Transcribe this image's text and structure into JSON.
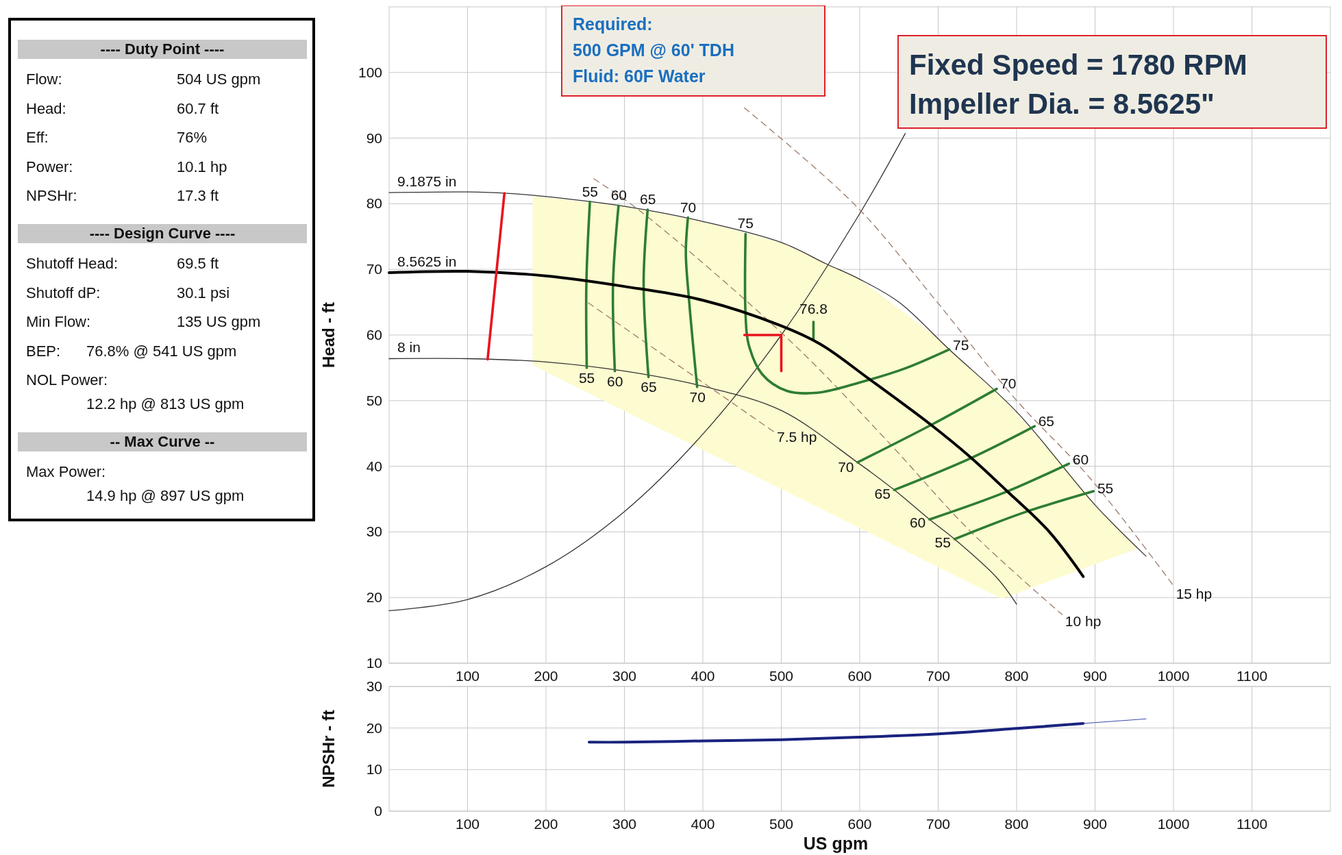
{
  "chart_data": [
    {
      "type": "other",
      "title": "---- Duty Point ----",
      "annotations": [
        "Flow:",
        "504 US gpm",
        "Head:",
        "60.7 ft",
        "Eff:",
        "76%",
        "Power:",
        "10.1 hp",
        "NPSHr:",
        "17.3 ft"
      ]
    },
    {
      "type": "other",
      "title": "---- Design Curve ----",
      "annotations": [
        "Shutoff Head:",
        "69.5 ft",
        "Shutoff dP:",
        "30.1 psi",
        "Min Flow:",
        "135 US gpm",
        "BEP:",
        "76.8% @ 541 US gpm",
        "NOL Power:",
        "12.2 hp @ 813 US gpm"
      ]
    },
    {
      "type": "other",
      "title": "-- Max Curve --",
      "annotations": [
        "Max Power:",
        "14.9 hp @ 897 US gpm"
      ]
    },
    {
      "type": "line",
      "ylabel": "Head - ft",
      "xlim": [
        0,
        1200
      ],
      "ylim": [
        10,
        110
      ],
      "xticks": [
        100,
        200,
        300,
        400,
        500,
        600,
        700,
        800,
        900,
        1000,
        1100
      ],
      "yticks": [
        10,
        20,
        30,
        40,
        50,
        60,
        70,
        80,
        90,
        100
      ],
      "grid": true,
      "annotations": [
        "Required:\n500 GPM @ 60' TDH\nFluid: 60F Water",
        "Fixed Speed = 1780 RPM\nImpeller Dia. = 8.5625\"",
        {
          "text": "76.8",
          "x": 541,
          "y": 62
        }
      ],
      "series": [
        {
          "type": "area",
          "color": "#fdfbd0",
          "x": [
            183,
            300,
            400,
            500,
            600,
            700,
            781,
            850,
            900,
            955,
            781,
            183
          ],
          "values": [
            81.2,
            79.6,
            77.3,
            74.1,
            68.5,
            59.5,
            50.5,
            41.5,
            34.1,
            27.5,
            19.8,
            55.4
          ]
        },
        {
          "name": "9.1875 in",
          "color": "#333333",
          "x": [
            0,
            100,
            150,
            200,
            300,
            400,
            500,
            558,
            600,
            650,
            714,
            800,
            900,
            965
          ],
          "values": [
            81.7,
            81.8,
            81.6,
            81.1,
            79.6,
            77.3,
            74.1,
            70.8,
            68.5,
            65,
            57.8,
            48.3,
            34.1,
            26.3
          ]
        },
        {
          "name": "8 in",
          "color": "#333333",
          "x": [
            0,
            100,
            200,
            300,
            400,
            500,
            597,
            644,
            689,
            721,
            775,
            800
          ],
          "values": [
            56.4,
            56.4,
            55.9,
            54.5,
            52.2,
            48.5,
            40.6,
            36.4,
            31.9,
            28.9,
            23,
            19
          ]
        },
        {
          "color": "#333333",
          "x": [
            0,
            100,
            200,
            300,
            400,
            500,
            600,
            658
          ],
          "values": [
            18,
            19.7,
            24.7,
            33.1,
            44.9,
            60,
            78.5,
            90.7
          ]
        },
        {
          "name": "7.5 hp",
          "color": "#9c7b6a",
          "line_style": "dashed",
          "x": [
            254,
            490
          ],
          "values": [
            64.9,
            45.3
          ]
        },
        {
          "name": "10 hp",
          "color": "#9c7b6a",
          "line_style": "dashed",
          "x": [
            261,
            320,
            514,
            634,
            741,
            858
          ],
          "values": [
            83.8,
            78.9,
            58.8,
            44,
            30.1,
            17.4
          ]
        },
        {
          "name": "15 hp",
          "color": "#9c7b6a",
          "line_style": "dashed",
          "x": [
            453,
            595,
            694,
            798,
            895,
            1000
          ],
          "values": [
            94.6,
            79.7,
            65.7,
            50.3,
            38,
            21.8
          ]
        },
        {
          "name": "55",
          "color": "#2e7d32",
          "x": [
            256,
            251.5,
            252
          ],
          "values": [
            80.3,
            67.9,
            55
          ]
        },
        {
          "name": "55",
          "color": "#2e7d32",
          "x": [
            898,
            808,
            721
          ],
          "values": [
            36.2,
            32.9,
            28.9
          ]
        },
        {
          "name": "60",
          "color": "#2e7d32",
          "x": [
            292.5,
            285.5,
            287.8
          ],
          "values": [
            79.7,
            67.9,
            54.5
          ]
        },
        {
          "name": "60",
          "color": "#2e7d32",
          "x": [
            866.6,
            784.6,
            689
          ],
          "values": [
            40.4,
            36,
            31.9
          ]
        },
        {
          "name": "65",
          "color": "#2e7d32",
          "x": [
            329.6,
            324.5,
            330.7
          ],
          "values": [
            79.1,
            67.9,
            53.6
          ]
        },
        {
          "name": "65",
          "color": "#2e7d32",
          "x": [
            823,
            741,
            644
          ],
          "values": [
            46.1,
            41.2,
            36.4
          ]
        },
        {
          "name": "70",
          "color": "#2e7d32",
          "x": [
            381,
            378.3,
            382.2,
            392.7
          ],
          "values": [
            77.9,
            72.5,
            65.6,
            52.1
          ]
        },
        {
          "name": "70",
          "color": "#2e7d32",
          "x": [
            774.6,
            691,
            597.3
          ],
          "values": [
            51.8,
            46.3,
            40.6
          ]
        },
        {
          "name": "75",
          "color": "#2e7d32",
          "x": [
            454.4,
            454.4,
            458.3,
            475.8,
            507,
            546,
            604,
            657.5,
            714
          ],
          "values": [
            75.4,
            63.2,
            58.6,
            54,
            51.5,
            51.2,
            52.9,
            54.9,
            57.8
          ]
        },
        {
          "color": "#2e7d32",
          "x": [
            541,
            541
          ],
          "values": [
            62,
            59.3
          ]
        },
        {
          "name": "8.5625 in",
          "color": "#000000",
          "x": [
            0,
            100,
            200,
            300,
            400,
            500,
            550,
            612,
            691,
            741,
            788,
            841,
            885
          ],
          "values": [
            69.5,
            69.7,
            69,
            67.4,
            65.3,
            61.4,
            58.6,
            53.3,
            46.3,
            41.4,
            36.2,
            30.1,
            23.2
          ]
        },
        {
          "color": "#e8141e",
          "x": [
            147,
            125.6
          ],
          "values": [
            81.6,
            56.3
          ]
        },
        {
          "color": "#e8141e",
          "x": [
            453,
            500,
            500
          ],
          "values": [
            60,
            60,
            54.5
          ]
        }
      ]
    },
    {
      "type": "line",
      "xlabel": "US gpm",
      "ylabel": "NPSHr - ft",
      "xlim": [
        0,
        1200
      ],
      "ylim": [
        0,
        30
      ],
      "xticks": [
        100,
        200,
        300,
        400,
        500,
        600,
        700,
        800,
        900,
        1000,
        1100
      ],
      "yticks": [
        0,
        10,
        20,
        30
      ],
      "grid": true,
      "series": [
        {
          "color": "#1a237e",
          "x": [
            255,
            300,
            400,
            500,
            600,
            700,
            800,
            885
          ],
          "values": [
            16.6,
            16.6,
            16.9,
            17.2,
            17.8,
            18.6,
            19.9,
            21.1
          ]
        },
        {
          "color": "#3949ab",
          "x": [
            885,
            965
          ],
          "values": [
            21.1,
            22.2
          ]
        }
      ]
    }
  ]
}
